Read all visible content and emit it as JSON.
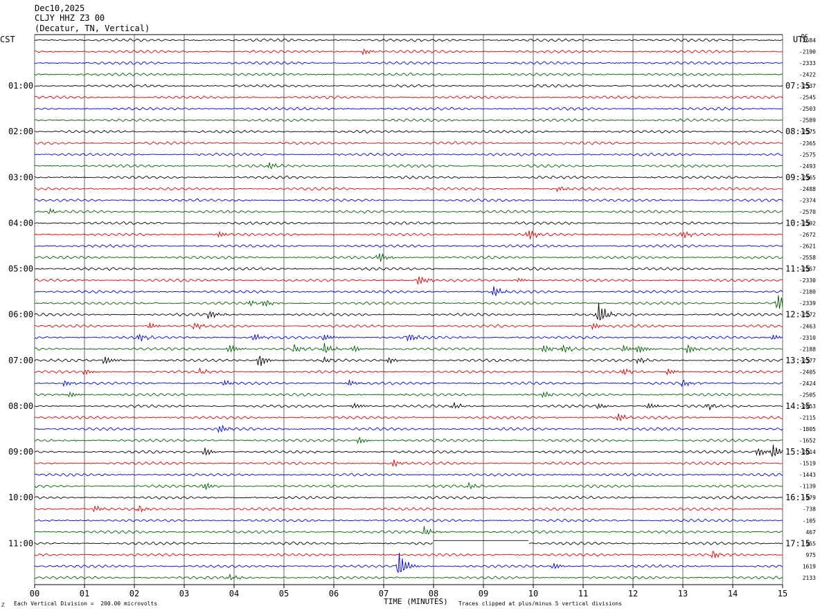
{
  "header": {
    "date": "Dec10,2025",
    "station": "CLJY HHZ Z3 00",
    "location": "(Decatur, TN, Vertical)"
  },
  "left_timezone": "CST",
  "right_timezone": "UTC",
  "dc_label": "DC",
  "footer": {
    "scale_note": "Each Vertical Division =  200.00 microvolts",
    "clip_note": "Traces clipped at plus/minus 5 vertical divisions",
    "corner_mark": "ℤ"
  },
  "colors": {
    "trace_cycle": [
      "#000000",
      "#e00000",
      "#0000e0",
      "#006000"
    ],
    "grid": "#000000"
  },
  "chart_data": {
    "type": "line",
    "title": "",
    "xlabel": "TIME (MINUTES)",
    "ylabel": "",
    "xlim": [
      0,
      15
    ],
    "x_ticks": [
      "00",
      "01",
      "02",
      "03",
      "04",
      "05",
      "06",
      "07",
      "08",
      "09",
      "10",
      "11",
      "12",
      "13",
      "14",
      "15"
    ],
    "grid": true,
    "traces_per_hour": 4,
    "left_time_labels": [
      {
        "row": 4,
        "label": "01:00"
      },
      {
        "row": 8,
        "label": "02:00"
      },
      {
        "row": 12,
        "label": "03:00"
      },
      {
        "row": 16,
        "label": "04:00"
      },
      {
        "row": 20,
        "label": "05:00"
      },
      {
        "row": 24,
        "label": "06:00"
      },
      {
        "row": 28,
        "label": "07:00"
      },
      {
        "row": 32,
        "label": "08:00"
      },
      {
        "row": 36,
        "label": "09:00"
      },
      {
        "row": 40,
        "label": "10:00"
      },
      {
        "row": 44,
        "label": "11:00"
      }
    ],
    "right_time_labels": [
      {
        "row": 4,
        "label": "07:15"
      },
      {
        "row": 8,
        "label": "08:15"
      },
      {
        "row": 12,
        "label": "09:15"
      },
      {
        "row": 16,
        "label": "10:15"
      },
      {
        "row": 20,
        "label": "11:15"
      },
      {
        "row": 24,
        "label": "12:15"
      },
      {
        "row": 28,
        "label": "13:15"
      },
      {
        "row": 32,
        "label": "14:15"
      },
      {
        "row": 36,
        "label": "15:15"
      },
      {
        "row": 40,
        "label": "16:15"
      },
      {
        "row": 44,
        "label": "17:15"
      }
    ],
    "dc_offsets": [
      "-2684",
      "-2190",
      "-2333",
      "-2422",
      "-2537",
      "-2545",
      "-2503",
      "-2589",
      "-2575",
      "-2365",
      "-2575",
      "-2493",
      "-2365",
      "-2488",
      "-2374",
      "-2570",
      "-2592",
      "-2672",
      "-2621",
      "-2558",
      "-2557",
      "-2330",
      "-2180",
      "-2339",
      "-2272",
      "-2463",
      "-2310",
      "-2188",
      "-2377",
      "-2405",
      "-2424",
      "-2505",
      "-2453",
      "-2115",
      "-1805",
      "-1652",
      "-2014",
      "-1519",
      "-1443",
      "-1139",
      "-979",
      "-738",
      "-105",
      "467",
      "955",
      "975",
      "1619",
      "2133"
    ],
    "events": [
      {
        "row": 1,
        "minute": 6.6,
        "amp": 0.5
      },
      {
        "row": 11,
        "minute": 4.7,
        "amp": 0.6
      },
      {
        "row": 13,
        "minute": 10.5,
        "amp": 0.5
      },
      {
        "row": 15,
        "minute": 0.3,
        "amp": 0.5
      },
      {
        "row": 17,
        "minute": 3.7,
        "amp": 0.5
      },
      {
        "row": 17,
        "minute": 9.9,
        "amp": 0.9
      },
      {
        "row": 17,
        "minute": 13.0,
        "amp": 0.6
      },
      {
        "row": 19,
        "minute": 6.9,
        "amp": 0.8
      },
      {
        "row": 21,
        "minute": 7.7,
        "amp": 0.9
      },
      {
        "row": 21,
        "minute": 9.7,
        "amp": 0.4
      },
      {
        "row": 22,
        "minute": 9.2,
        "amp": 0.9
      },
      {
        "row": 23,
        "minute": 4.3,
        "amp": 0.5
      },
      {
        "row": 23,
        "minute": 4.6,
        "amp": 0.6
      },
      {
        "row": 23,
        "minute": 14.9,
        "amp": 1.5
      },
      {
        "row": 24,
        "minute": 3.5,
        "amp": 0.7
      },
      {
        "row": 24,
        "minute": 11.3,
        "amp": 2.0
      },
      {
        "row": 25,
        "minute": 2.3,
        "amp": 0.5
      },
      {
        "row": 25,
        "minute": 3.2,
        "amp": 0.5
      },
      {
        "row": 25,
        "minute": 11.2,
        "amp": 0.5
      },
      {
        "row": 26,
        "minute": 2.1,
        "amp": 0.6
      },
      {
        "row": 26,
        "minute": 4.4,
        "amp": 0.6
      },
      {
        "row": 26,
        "minute": 5.8,
        "amp": 0.6
      },
      {
        "row": 26,
        "minute": 7.5,
        "amp": 0.8
      },
      {
        "row": 26,
        "minute": 14.8,
        "amp": 0.5
      },
      {
        "row": 27,
        "minute": 3.9,
        "amp": 0.8
      },
      {
        "row": 27,
        "minute": 5.2,
        "amp": 0.7
      },
      {
        "row": 27,
        "minute": 5.8,
        "amp": 0.9
      },
      {
        "row": 27,
        "minute": 6.4,
        "amp": 0.6
      },
      {
        "row": 27,
        "minute": 10.2,
        "amp": 0.8
      },
      {
        "row": 27,
        "minute": 10.6,
        "amp": 0.7
      },
      {
        "row": 27,
        "minute": 11.8,
        "amp": 0.6
      },
      {
        "row": 27,
        "minute": 12.1,
        "amp": 0.7
      },
      {
        "row": 27,
        "minute": 13.1,
        "amp": 0.8
      },
      {
        "row": 28,
        "minute": 1.4,
        "amp": 0.8
      },
      {
        "row": 28,
        "minute": 4.5,
        "amp": 1.2
      },
      {
        "row": 28,
        "minute": 5.8,
        "amp": 0.5
      },
      {
        "row": 28,
        "minute": 7.1,
        "amp": 0.6
      },
      {
        "row": 28,
        "minute": 12.1,
        "amp": 0.5
      },
      {
        "row": 29,
        "minute": 1.0,
        "amp": 0.5
      },
      {
        "row": 29,
        "minute": 3.3,
        "amp": 0.5
      },
      {
        "row": 29,
        "minute": 11.8,
        "amp": 0.6
      },
      {
        "row": 29,
        "minute": 12.7,
        "amp": 0.5
      },
      {
        "row": 30,
        "minute": 0.6,
        "amp": 0.6
      },
      {
        "row": 30,
        "minute": 3.8,
        "amp": 0.5
      },
      {
        "row": 30,
        "minute": 6.3,
        "amp": 0.6
      },
      {
        "row": 30,
        "minute": 13.0,
        "amp": 0.6
      },
      {
        "row": 31,
        "minute": 0.7,
        "amp": 0.4
      },
      {
        "row": 31,
        "minute": 10.2,
        "amp": 0.5
      },
      {
        "row": 32,
        "minute": 6.4,
        "amp": 0.5
      },
      {
        "row": 32,
        "minute": 8.4,
        "amp": 0.6
      },
      {
        "row": 32,
        "minute": 11.3,
        "amp": 0.5
      },
      {
        "row": 32,
        "minute": 12.3,
        "amp": 0.5
      },
      {
        "row": 32,
        "minute": 13.5,
        "amp": 0.5
      },
      {
        "row": 33,
        "minute": 11.7,
        "amp": 0.7
      },
      {
        "row": 34,
        "minute": 3.7,
        "amp": 0.7
      },
      {
        "row": 35,
        "minute": 6.5,
        "amp": 0.6
      },
      {
        "row": 36,
        "minute": 3.4,
        "amp": 0.8
      },
      {
        "row": 36,
        "minute": 14.5,
        "amp": 0.7
      },
      {
        "row": 36,
        "minute": 14.8,
        "amp": 1.3
      },
      {
        "row": 37,
        "minute": 7.2,
        "amp": 0.6
      },
      {
        "row": 39,
        "minute": 3.4,
        "amp": 0.7
      },
      {
        "row": 39,
        "minute": 8.7,
        "amp": 0.5
      },
      {
        "row": 41,
        "minute": 1.2,
        "amp": 0.5
      },
      {
        "row": 41,
        "minute": 2.1,
        "amp": 0.5
      },
      {
        "row": 43,
        "minute": 7.8,
        "amp": 0.8
      },
      {
        "row": 45,
        "minute": 13.6,
        "amp": 0.6
      },
      {
        "row": 46,
        "minute": 7.3,
        "amp": 2.5
      },
      {
        "row": 46,
        "minute": 10.4,
        "amp": 0.6
      },
      {
        "row": 47,
        "minute": 3.9,
        "amp": 0.5
      }
    ],
    "gaps": [
      {
        "row": 44,
        "start": 8.0,
        "end": 9.9
      }
    ]
  }
}
